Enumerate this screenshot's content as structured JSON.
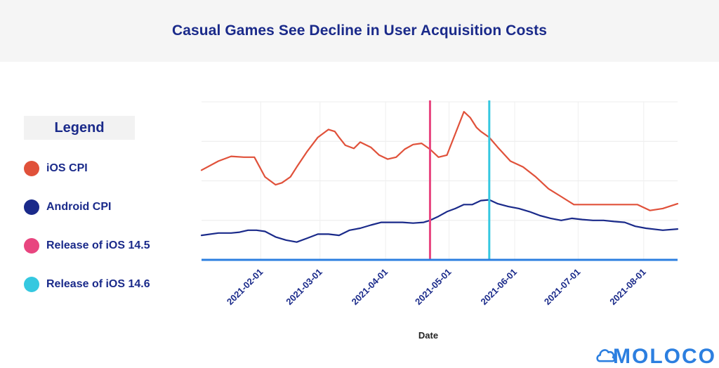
{
  "title": "Casual Games See Decline in User Acquisition Costs",
  "legend": {
    "heading": "Legend",
    "items": [
      {
        "label": "iOS CPI",
        "color": "#e0513a"
      },
      {
        "label": "Android CPI",
        "color": "#1a2a8a"
      },
      {
        "label": "Release of iOS 14.5",
        "color": "#e8457f"
      },
      {
        "label": "Release of iOS 14.6",
        "color": "#35c8e0"
      }
    ]
  },
  "logo": {
    "text": "MOLOCO",
    "color": "#2c7fe0"
  },
  "chart_data": {
    "type": "line",
    "title": "Casual Games See Decline in User Acquisition Costs",
    "xlabel": "Date",
    "ylabel": "",
    "xlim": [
      0,
      225
    ],
    "ylim": [
      0,
      4
    ],
    "x_ticks": [
      {
        "label": "2021-02-01",
        "day": 28
      },
      {
        "label": "2021-03-01",
        "day": 56
      },
      {
        "label": "2021-04-01",
        "day": 87
      },
      {
        "label": "2021-05-01",
        "day": 117
      },
      {
        "label": "2021-06-01",
        "day": 148
      },
      {
        "label": "2021-07-01",
        "day": 178
      },
      {
        "label": "2021-08-01",
        "day": 209
      }
    ],
    "vlines": [
      {
        "name": "Release of iOS 14.5",
        "day": 108,
        "color": "#e8457f"
      },
      {
        "name": "Release of iOS 14.6",
        "day": 136,
        "color": "#35c8e0"
      }
    ],
    "series": [
      {
        "name": "iOS CPI",
        "color": "#e0513a",
        "x": [
          0,
          8,
          14,
          20,
          25,
          30,
          35,
          38,
          42,
          45,
          50,
          55,
          60,
          63,
          65,
          68,
          72,
          75,
          80,
          84,
          88,
          92,
          96,
          100,
          104,
          108,
          112,
          116,
          120,
          124,
          127,
          130,
          132,
          136,
          140,
          146,
          152,
          158,
          164,
          170,
          176,
          182,
          188,
          194,
          200,
          206,
          212,
          218,
          225
        ],
        "y": [
          2.27,
          2.5,
          2.62,
          2.6,
          2.6,
          2.1,
          1.9,
          1.95,
          2.1,
          2.35,
          2.75,
          3.1,
          3.3,
          3.25,
          3.1,
          2.9,
          2.82,
          2.98,
          2.85,
          2.65,
          2.55,
          2.6,
          2.8,
          2.92,
          2.95,
          2.8,
          2.6,
          2.65,
          3.2,
          3.75,
          3.6,
          3.35,
          3.25,
          3.1,
          2.85,
          2.5,
          2.35,
          2.1,
          1.8,
          1.6,
          1.4,
          1.4,
          1.4,
          1.4,
          1.4,
          1.4,
          1.25,
          1.3,
          1.42
        ]
      },
      {
        "name": "Android CPI",
        "color": "#1a2a8a",
        "x": [
          0,
          8,
          14,
          18,
          22,
          26,
          30,
          35,
          40,
          45,
          50,
          55,
          60,
          65,
          70,
          75,
          80,
          85,
          90,
          95,
          100,
          105,
          108,
          112,
          116,
          120,
          124,
          128,
          132,
          136,
          140,
          145,
          150,
          155,
          160,
          165,
          170,
          175,
          180,
          185,
          190,
          195,
          200,
          205,
          210,
          218,
          225
        ],
        "y": [
          0.62,
          0.68,
          0.68,
          0.7,
          0.75,
          0.75,
          0.72,
          0.58,
          0.5,
          0.45,
          0.55,
          0.65,
          0.65,
          0.62,
          0.75,
          0.8,
          0.88,
          0.95,
          0.95,
          0.95,
          0.93,
          0.95,
          1.0,
          1.1,
          1.22,
          1.3,
          1.4,
          1.4,
          1.5,
          1.52,
          1.42,
          1.35,
          1.3,
          1.22,
          1.12,
          1.05,
          1.0,
          1.05,
          1.02,
          1.0,
          1.0,
          0.97,
          0.95,
          0.85,
          0.8,
          0.75,
          0.78
        ]
      }
    ]
  }
}
